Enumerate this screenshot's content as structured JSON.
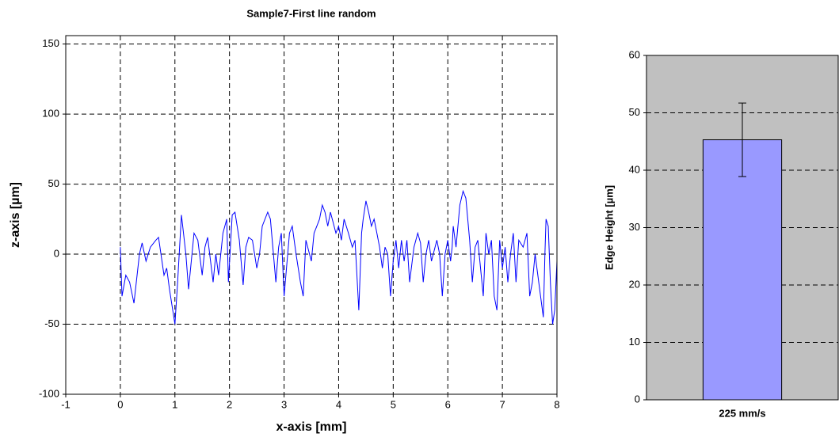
{
  "chart_data": [
    {
      "type": "line",
      "title": "Sample7-First line random",
      "x_label": "x-axis [mm]",
      "y_label": "z-axis [µm]",
      "x": [
        0,
        0.03,
        0.1,
        0.17,
        0.25,
        0.35,
        0.4,
        0.47,
        0.55,
        0.65,
        0.7,
        0.8,
        0.85,
        0.9,
        1.0,
        1.05,
        1.12,
        1.2,
        1.25,
        1.35,
        1.42,
        1.5,
        1.55,
        1.6,
        1.7,
        1.75,
        1.8,
        1.88,
        1.95,
        1.98,
        2.05,
        2.1,
        2.18,
        2.25,
        2.3,
        2.35,
        2.42,
        2.5,
        2.55,
        2.6,
        2.7,
        2.75,
        2.85,
        2.9,
        2.95,
        3.0,
        3.1,
        3.15,
        3.22,
        3.3,
        3.35,
        3.4,
        3.5,
        3.55,
        3.6,
        3.65,
        3.7,
        3.75,
        3.8,
        3.85,
        3.95,
        4.0,
        4.05,
        4.1,
        4.18,
        4.25,
        4.3,
        4.37,
        4.42,
        4.45,
        4.5,
        4.55,
        4.6,
        4.65,
        4.7,
        4.75,
        4.8,
        4.85,
        4.9,
        4.95,
        5.0,
        5.05,
        5.1,
        5.15,
        5.2,
        5.25,
        5.3,
        5.38,
        5.45,
        5.5,
        5.55,
        5.6,
        5.65,
        5.7,
        5.8,
        5.85,
        5.9,
        5.95,
        6.0,
        6.05,
        6.08,
        6.1,
        6.15,
        6.22,
        6.28,
        6.33,
        6.4,
        6.45,
        6.5,
        6.55,
        6.65,
        6.7,
        6.75,
        6.8,
        6.85,
        6.9,
        6.95,
        7.0,
        7.05,
        7.1,
        7.15,
        7.2,
        7.25,
        7.3,
        7.38,
        7.45,
        7.5,
        7.55,
        7.6,
        7.7,
        7.75,
        7.78,
        7.8,
        7.84,
        7.88,
        7.92,
        7.96,
        8.0
      ],
      "values": [
        5,
        -30,
        -15,
        -20,
        -35,
        0,
        8,
        -5,
        5,
        10,
        12,
        -15,
        -10,
        -25,
        -50,
        -20,
        28,
        0,
        -25,
        15,
        10,
        -15,
        5,
        12,
        -20,
        0,
        -15,
        15,
        25,
        -20,
        28,
        30,
        10,
        -22,
        5,
        12,
        10,
        -10,
        0,
        20,
        30,
        25,
        -20,
        5,
        15,
        -30,
        15,
        20,
        0,
        -20,
        -30,
        10,
        -5,
        15,
        20,
        25,
        35,
        30,
        20,
        30,
        15,
        20,
        10,
        25,
        15,
        5,
        10,
        -40,
        15,
        25,
        38,
        30,
        20,
        25,
        15,
        5,
        -10,
        5,
        0,
        -30,
        -5,
        10,
        -10,
        10,
        -5,
        10,
        -20,
        5,
        15,
        8,
        -20,
        0,
        10,
        -5,
        10,
        0,
        -30,
        0,
        10,
        -5,
        5,
        20,
        5,
        35,
        45,
        40,
        10,
        -20,
        5,
        10,
        -30,
        15,
        0,
        10,
        -30,
        -40,
        10,
        -10,
        5,
        -20,
        0,
        15,
        -20,
        10,
        5,
        15,
        -30,
        -20,
        0,
        -30,
        -45,
        0,
        25,
        20,
        -20,
        -50,
        -40,
        -5
      ],
      "color": "#0000ff",
      "xlim": [
        -1,
        8
      ],
      "xticks": [
        -1,
        0,
        1,
        2,
        3,
        4,
        5,
        6,
        7,
        8
      ],
      "ylim": [
        -100,
        156
      ],
      "yticks": [
        -100,
        -50,
        0,
        50,
        100,
        150
      ],
      "grid": true
    },
    {
      "type": "bar",
      "y_label": "Edge Height [µm]",
      "categories": [
        "225 mm/s"
      ],
      "values": [
        45.3
      ],
      "errors": [
        6.4
      ],
      "color": "#9999ff",
      "background": "#c0c0c0",
      "ylim": [
        0,
        60
      ],
      "yticks": [
        0,
        10,
        20,
        30,
        40,
        50,
        60
      ],
      "grid": true
    }
  ]
}
